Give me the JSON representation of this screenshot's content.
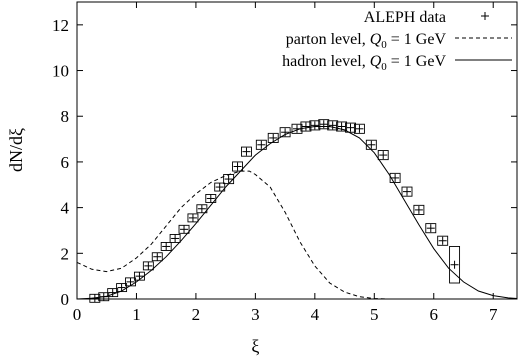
{
  "chart_data": {
    "type": "line",
    "xlabel": "ξ",
    "ylabel": "dN/dξ",
    "xlim": [
      0,
      7.4
    ],
    "ylim": [
      0,
      13
    ],
    "xticks": [
      "0",
      "1",
      "2",
      "3",
      "4",
      "5",
      "6",
      "7"
    ],
    "yticks": [
      "0",
      "2",
      "4",
      "6",
      "8",
      "10",
      "12"
    ],
    "legend_position": "top-right",
    "legend": [
      {
        "label_prefix": "ALEPH data",
        "label_suffix": "",
        "style": "points"
      },
      {
        "label_prefix": "parton level, ",
        "q_symbol": "Q",
        "q_sub": "0",
        "label_suffix": " = 1 GeV",
        "style": "dashed"
      },
      {
        "label_prefix": "hadron level, ",
        "q_symbol": "Q",
        "q_sub": "0",
        "label_suffix": " = 1 GeV",
        "style": "solid"
      }
    ],
    "series": [
      {
        "style": "points",
        "x": [
          0.3,
          0.45,
          0.6,
          0.75,
          0.9,
          1.05,
          1.2,
          1.35,
          1.5,
          1.65,
          1.8,
          1.95,
          2.1,
          2.25,
          2.4,
          2.55,
          2.7,
          2.85,
          3.1,
          3.3,
          3.5,
          3.7,
          3.85,
          4.0,
          4.15,
          4.3,
          4.45,
          4.6,
          4.75,
          4.95,
          5.15,
          5.35,
          5.55,
          5.75,
          5.95,
          6.15,
          6.35
        ],
        "y": [
          0.03,
          0.1,
          0.28,
          0.5,
          0.75,
          1.0,
          1.45,
          1.85,
          2.3,
          2.65,
          3.05,
          3.55,
          3.95,
          4.4,
          4.9,
          5.25,
          5.8,
          6.45,
          6.75,
          7.05,
          7.3,
          7.45,
          7.55,
          7.6,
          7.65,
          7.6,
          7.55,
          7.5,
          7.45,
          6.75,
          6.3,
          5.3,
          4.7,
          3.9,
          3.1,
          2.55,
          1.5
        ],
        "err": [
          0.05,
          0.05,
          0.05,
          0.08,
          0.1,
          0.1,
          0.12,
          0.12,
          0.12,
          0.15,
          0.15,
          0.15,
          0.15,
          0.15,
          0.15,
          0.2,
          0.2,
          0.2,
          0.2,
          0.2,
          0.2,
          0.2,
          0.2,
          0.2,
          0.2,
          0.2,
          0.2,
          0.2,
          0.2,
          0.2,
          0.2,
          0.2,
          0.2,
          0.2,
          0.2,
          0.2,
          0.8
        ]
      },
      {
        "style": "dashed",
        "x": [
          0.0,
          0.25,
          0.5,
          0.75,
          1.0,
          1.25,
          1.5,
          1.75,
          2.0,
          2.25,
          2.5,
          2.75,
          2.9,
          3.0,
          3.25,
          3.5,
          3.75,
          4.0,
          4.25,
          4.5,
          4.75,
          5.0,
          5.25,
          5.5,
          7.4
        ],
        "y": [
          1.6,
          1.3,
          1.2,
          1.35,
          1.8,
          2.4,
          3.2,
          4.0,
          4.6,
          5.1,
          5.4,
          5.6,
          5.6,
          5.45,
          4.9,
          3.8,
          2.5,
          1.45,
          0.7,
          0.3,
          0.1,
          0.02,
          0.0,
          0.0,
          0.0
        ]
      },
      {
        "style": "solid",
        "x": [
          0.0,
          0.25,
          0.5,
          0.75,
          1.0,
          1.25,
          1.5,
          1.75,
          2.0,
          2.25,
          2.5,
          2.75,
          3.0,
          3.25,
          3.5,
          3.75,
          4.0,
          4.25,
          4.5,
          4.75,
          5.0,
          5.25,
          5.5,
          5.75,
          6.0,
          6.25,
          6.5,
          6.75,
          7.0,
          7.25,
          7.4
        ],
        "y": [
          0.0,
          0.03,
          0.12,
          0.35,
          0.75,
          1.25,
          1.85,
          2.55,
          3.3,
          4.1,
          4.9,
          5.6,
          6.3,
          6.8,
          7.2,
          7.45,
          7.55,
          7.55,
          7.4,
          7.05,
          6.4,
          5.45,
          4.35,
          3.25,
          2.2,
          1.35,
          0.75,
          0.35,
          0.15,
          0.05,
          0.02
        ]
      }
    ]
  }
}
